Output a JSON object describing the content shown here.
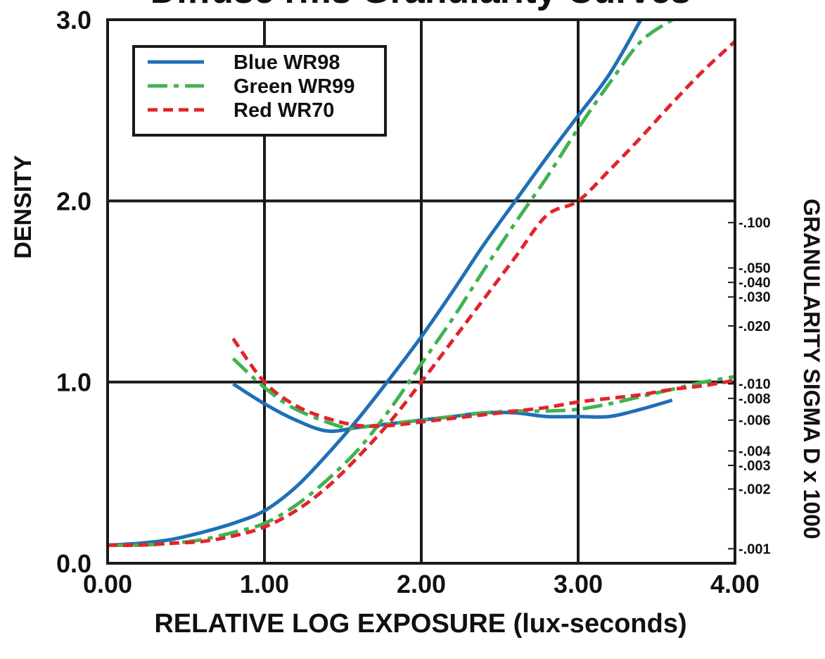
{
  "chart_data": {
    "type": "line",
    "title": "Diffuse rms Granularity Curves",
    "xlabel": "RELATIVE LOG EXPOSURE (lux-seconds)",
    "ylabel": "DENSITY",
    "y2label": "GRANULARITY SIGMA D x 1000",
    "xlim": [
      0,
      4
    ],
    "ylim": [
      0,
      3
    ],
    "x_ticks": [
      "0.00",
      "1.00",
      "2.00",
      "3.00",
      "4.00"
    ],
    "y_ticks": [
      "0.0",
      "1.0",
      "2.0",
      "3.0"
    ],
    "y2_ticks": [
      {
        "label": "-.100",
        "density": 1.88
      },
      {
        "label": "-.050",
        "density": 1.63
      },
      {
        "label": "-.040",
        "density": 1.55
      },
      {
        "label": "-.030",
        "density": 1.47
      },
      {
        "label": "-.020",
        "density": 1.31
      },
      {
        "label": "-.010",
        "density": 0.99
      },
      {
        "label": "-.008",
        "density": 0.91
      },
      {
        "label": "-.006",
        "density": 0.79
      },
      {
        "label": "-.004",
        "density": 0.62
      },
      {
        "label": "-.003",
        "density": 0.54
      },
      {
        "label": "-.002",
        "density": 0.41
      },
      {
        "label": "-.001",
        "density": 0.08
      }
    ],
    "grid": true,
    "legend_position": "top-left",
    "series": [
      {
        "name": "Blue WR98",
        "color": "#1f6fb6",
        "dash": "solid",
        "density": {
          "x": [
            0.0,
            0.2,
            0.4,
            0.6,
            0.8,
            1.0,
            1.2,
            1.4,
            1.6,
            1.8,
            2.0,
            2.2,
            2.4,
            2.6,
            2.8,
            3.0,
            3.2,
            3.4
          ],
          "y": [
            0.1,
            0.11,
            0.13,
            0.17,
            0.22,
            0.29,
            0.42,
            0.6,
            0.8,
            1.02,
            1.25,
            1.5,
            1.76,
            2.0,
            2.24,
            2.47,
            2.7,
            3.0
          ]
        },
        "granularity": {
          "x": [
            0.8,
            1.0,
            1.2,
            1.4,
            1.6,
            1.8,
            2.0,
            2.2,
            2.4,
            2.6,
            2.8,
            3.0,
            3.2,
            3.4,
            3.6
          ],
          "y": [
            0.99,
            0.88,
            0.79,
            0.73,
            0.75,
            0.77,
            0.79,
            0.81,
            0.83,
            0.83,
            0.81,
            0.81,
            0.81,
            0.85,
            0.9
          ]
        }
      },
      {
        "name": "Green WR99",
        "color": "#3fb34f",
        "dash": "dash-dot",
        "density": {
          "x": [
            0.0,
            0.2,
            0.4,
            0.6,
            0.8,
            1.0,
            1.2,
            1.4,
            1.6,
            1.8,
            2.0,
            2.2,
            2.4,
            2.6,
            2.8,
            3.0,
            3.2,
            3.4,
            3.6
          ],
          "y": [
            0.1,
            0.1,
            0.11,
            0.13,
            0.17,
            0.22,
            0.32,
            0.46,
            0.63,
            0.85,
            1.1,
            1.35,
            1.62,
            1.88,
            2.13,
            2.4,
            2.65,
            2.88,
            3.0
          ]
        },
        "granularity": {
          "x": [
            0.8,
            1.0,
            1.2,
            1.5,
            1.6,
            1.8,
            2.0,
            2.2,
            2.4,
            2.6,
            2.8,
            3.0,
            3.2,
            3.4,
            3.6,
            3.8,
            4.0
          ],
          "y": [
            1.13,
            0.97,
            0.85,
            0.75,
            0.75,
            0.77,
            0.79,
            0.81,
            0.83,
            0.84,
            0.84,
            0.85,
            0.88,
            0.92,
            0.96,
            1.0,
            1.03
          ]
        }
      },
      {
        "name": "Red WR70",
        "color": "#e2242b",
        "dash": "dashed",
        "density": {
          "x": [
            0.0,
            0.2,
            0.4,
            0.6,
            0.8,
            1.0,
            1.2,
            1.4,
            1.6,
            1.8,
            2.0,
            2.2,
            2.4,
            2.6,
            2.8,
            3.0,
            3.2,
            3.4,
            3.6,
            3.8,
            4.0
          ],
          "y": [
            0.1,
            0.1,
            0.11,
            0.12,
            0.15,
            0.2,
            0.29,
            0.42,
            0.59,
            0.78,
            1.0,
            1.23,
            1.46,
            1.69,
            1.92,
            2.0,
            2.17,
            2.35,
            2.54,
            2.72,
            2.88
          ]
        },
        "granularity": {
          "x": [
            0.8,
            1.0,
            1.2,
            1.4,
            1.6,
            1.8,
            2.0,
            2.2,
            2.4,
            2.6,
            2.8,
            3.0,
            3.2,
            3.4,
            3.6,
            3.8,
            4.0
          ],
          "y": [
            1.24,
            1.0,
            0.87,
            0.8,
            0.76,
            0.76,
            0.78,
            0.8,
            0.82,
            0.84,
            0.86,
            0.89,
            0.91,
            0.93,
            0.96,
            0.98,
            1.01
          ]
        }
      }
    ]
  }
}
